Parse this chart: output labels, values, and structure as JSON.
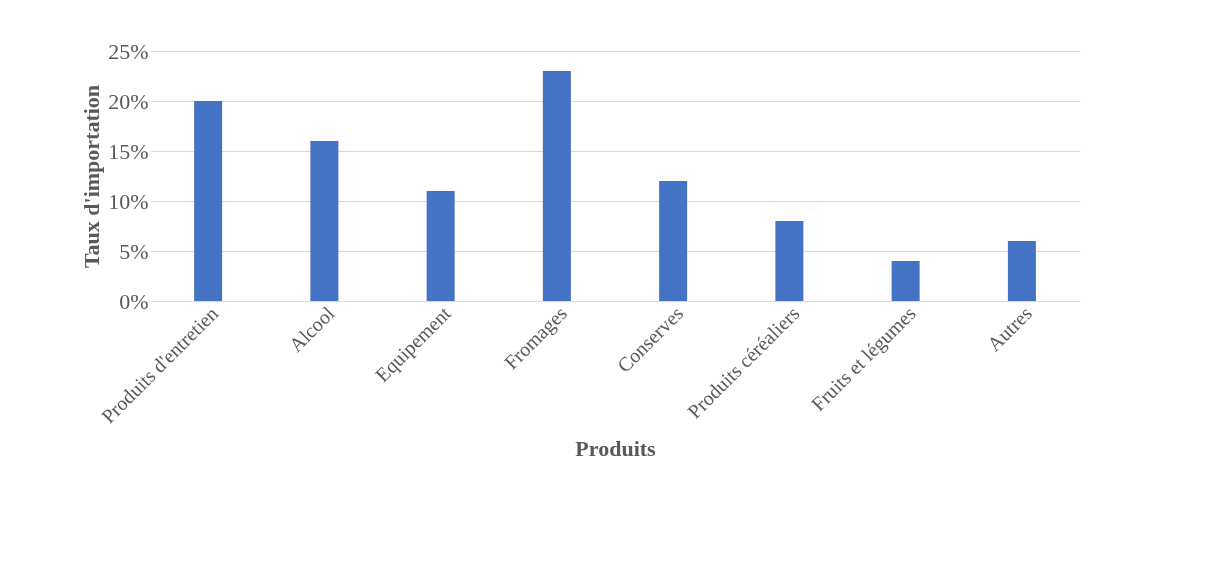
{
  "chart_data": {
    "type": "bar",
    "xlabel": "Produits",
    "ylabel": "Taux d'importation",
    "categories": [
      "Produits d'entretien",
      "Alcool",
      "Equipement",
      "Fromages",
      "Conserves",
      "Produits céréaliers",
      "Fruits et légumes",
      "Autres"
    ],
    "series": [
      {
        "color": "#4472c4",
        "values": [
          20,
          16,
          11,
          23,
          12,
          8,
          4,
          6
        ]
      }
    ],
    "ylim": [
      0,
      25
    ],
    "yticks": [
      {
        "value": 0,
        "label": "0%"
      },
      {
        "value": 5,
        "label": "5%"
      },
      {
        "value": 10,
        "label": "10%"
      },
      {
        "value": 15,
        "label": "15%"
      },
      {
        "value": 20,
        "label": "20%"
      },
      {
        "value": 25,
        "label": "25%"
      }
    ],
    "grid": "y"
  }
}
